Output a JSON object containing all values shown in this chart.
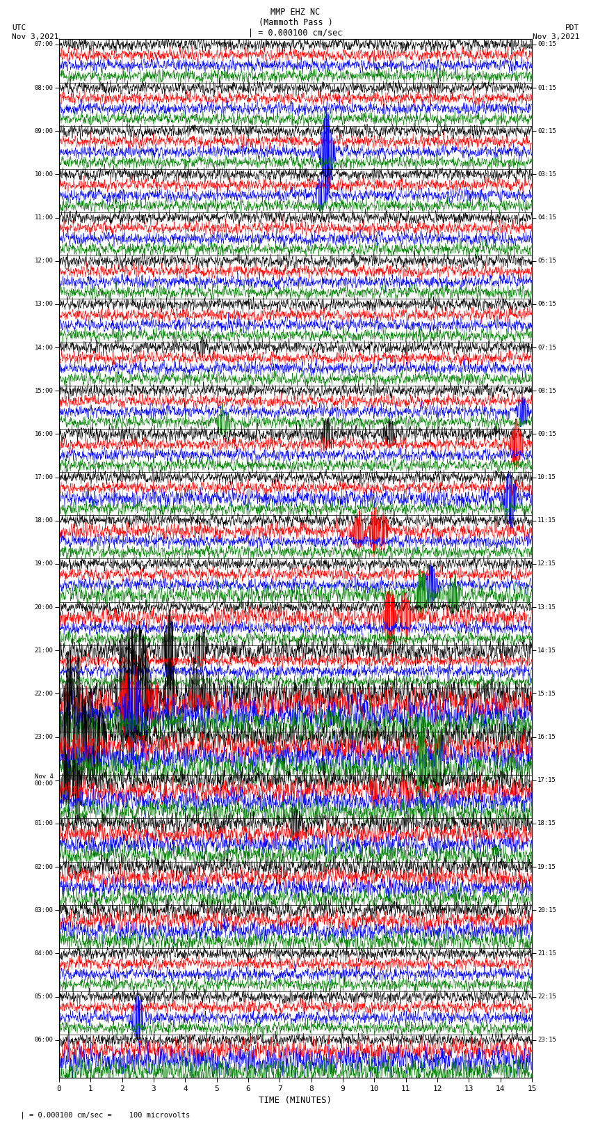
{
  "title_line1": "MMP EHZ NC",
  "title_line2": "(Mammoth Pass )",
  "title_line3": "| = 0.000100 cm/sec",
  "left_label": "UTC",
  "left_date": "Nov 3,2021",
  "right_label": "PDT",
  "right_date": "Nov 3,2021",
  "xlabel": "TIME (MINUTES)",
  "bottom_note": "  | = 0.000100 cm/sec =    100 microvolts",
  "xlim": [
    0,
    15
  ],
  "xticks": [
    0,
    1,
    2,
    3,
    4,
    5,
    6,
    7,
    8,
    9,
    10,
    11,
    12,
    13,
    14,
    15
  ],
  "fig_width": 8.5,
  "fig_height": 16.13,
  "dpi": 100,
  "bg_color": "#ffffff",
  "trace_colors": [
    "black",
    "red",
    "blue",
    "green"
  ],
  "utc_hour_labels": [
    "07:00",
    "08:00",
    "09:00",
    "10:00",
    "11:00",
    "12:00",
    "13:00",
    "14:00",
    "15:00",
    "16:00",
    "17:00",
    "18:00",
    "19:00",
    "20:00",
    "21:00",
    "22:00",
    "23:00",
    "Nov 4\n00:00",
    "01:00",
    "02:00",
    "03:00",
    "04:00",
    "05:00",
    "06:00"
  ],
  "pdt_hour_labels": [
    "00:15",
    "01:15",
    "02:15",
    "03:15",
    "04:15",
    "05:15",
    "06:15",
    "07:15",
    "08:15",
    "09:15",
    "10:15",
    "11:15",
    "12:15",
    "13:15",
    "14:15",
    "15:15",
    "16:15",
    "17:15",
    "18:15",
    "19:15",
    "20:15",
    "21:15",
    "22:15",
    "23:15"
  ],
  "n_hours": 24,
  "noise_seed": 42
}
